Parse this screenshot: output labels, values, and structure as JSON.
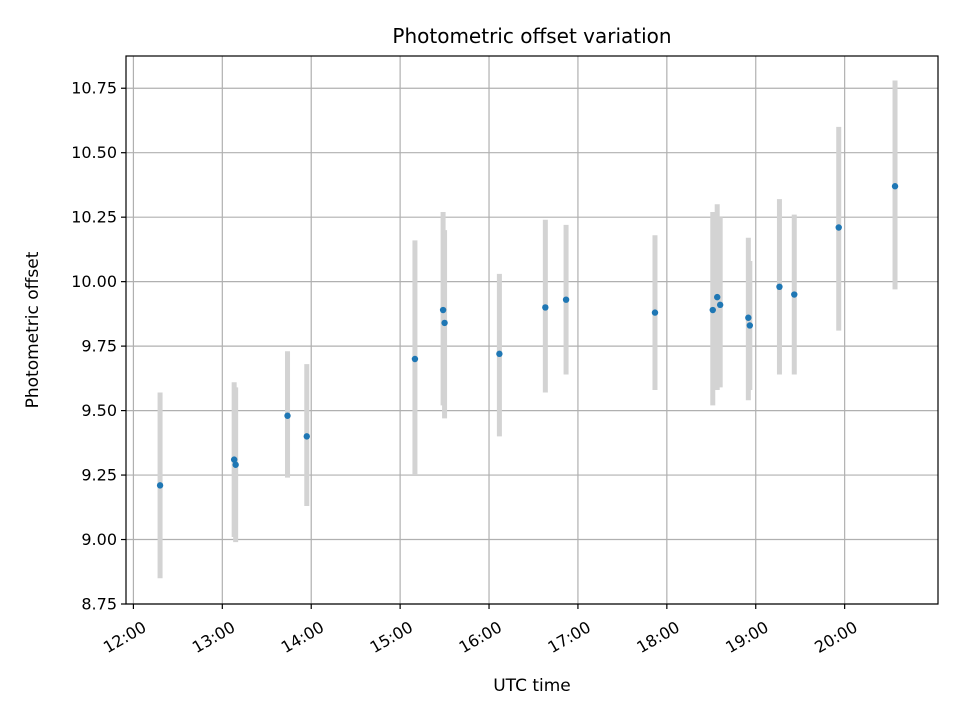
{
  "chart_data": {
    "type": "scatter",
    "title": "Photometric offset variation",
    "xlabel": "UTC time",
    "ylabel": "Photometric offset",
    "x_axis_type": "time",
    "xlim": [
      "11:55",
      "21:03"
    ],
    "ylim": [
      8.75,
      10.875
    ],
    "x_ticks": [
      "12:00",
      "13:00",
      "14:00",
      "15:00",
      "16:00",
      "17:00",
      "18:00",
      "19:00",
      "20:00"
    ],
    "y_ticks": [
      "8.75",
      "9.00",
      "9.25",
      "9.50",
      "9.75",
      "10.00",
      "10.25",
      "10.50",
      "10.75"
    ],
    "grid": true,
    "colors": {
      "marker": "#1f77b4",
      "errorbar": "#d3d3d3",
      "grid": "#b0b0b0"
    },
    "points": [
      {
        "x": "12:18",
        "y": 9.21,
        "y_err_low": 8.85,
        "y_err_high": 9.57
      },
      {
        "x": "13:08",
        "y": 9.31,
        "y_err_low": 9.01,
        "y_err_high": 9.61
      },
      {
        "x": "13:09",
        "y": 9.29,
        "y_err_low": 8.99,
        "y_err_high": 9.59
      },
      {
        "x": "13:44",
        "y": 9.48,
        "y_err_low": 9.24,
        "y_err_high": 9.73
      },
      {
        "x": "13:57",
        "y": 9.4,
        "y_err_low": 9.13,
        "y_err_high": 9.68
      },
      {
        "x": "15:10",
        "y": 9.7,
        "y_err_low": 9.25,
        "y_err_high": 10.16
      },
      {
        "x": "15:29",
        "y": 9.89,
        "y_err_low": 9.52,
        "y_err_high": 10.27
      },
      {
        "x": "15:30",
        "y": 9.84,
        "y_err_low": 9.47,
        "y_err_high": 10.2
      },
      {
        "x": "16:07",
        "y": 9.72,
        "y_err_low": 9.4,
        "y_err_high": 10.03
      },
      {
        "x": "16:38",
        "y": 9.9,
        "y_err_low": 9.57,
        "y_err_high": 10.24
      },
      {
        "x": "16:52",
        "y": 9.93,
        "y_err_low": 9.64,
        "y_err_high": 10.22
      },
      {
        "x": "17:52",
        "y": 9.88,
        "y_err_low": 9.58,
        "y_err_high": 10.18
      },
      {
        "x": "18:31",
        "y": 9.89,
        "y_err_low": 9.52,
        "y_err_high": 10.27
      },
      {
        "x": "18:34",
        "y": 9.94,
        "y_err_low": 9.58,
        "y_err_high": 10.3
      },
      {
        "x": "18:36",
        "y": 9.91,
        "y_err_low": 9.59,
        "y_err_high": 10.25
      },
      {
        "x": "18:55",
        "y": 9.86,
        "y_err_low": 9.54,
        "y_err_high": 10.17
      },
      {
        "x": "18:56",
        "y": 9.83,
        "y_err_low": 9.58,
        "y_err_high": 10.08
      },
      {
        "x": "19:16",
        "y": 9.98,
        "y_err_low": 9.64,
        "y_err_high": 10.32
      },
      {
        "x": "19:26",
        "y": 9.95,
        "y_err_low": 9.64,
        "y_err_high": 10.26
      },
      {
        "x": "19:56",
        "y": 10.21,
        "y_err_low": 9.81,
        "y_err_high": 10.6
      },
      {
        "x": "20:34",
        "y": 10.37,
        "y_err_low": 9.97,
        "y_err_high": 10.78
      }
    ]
  }
}
